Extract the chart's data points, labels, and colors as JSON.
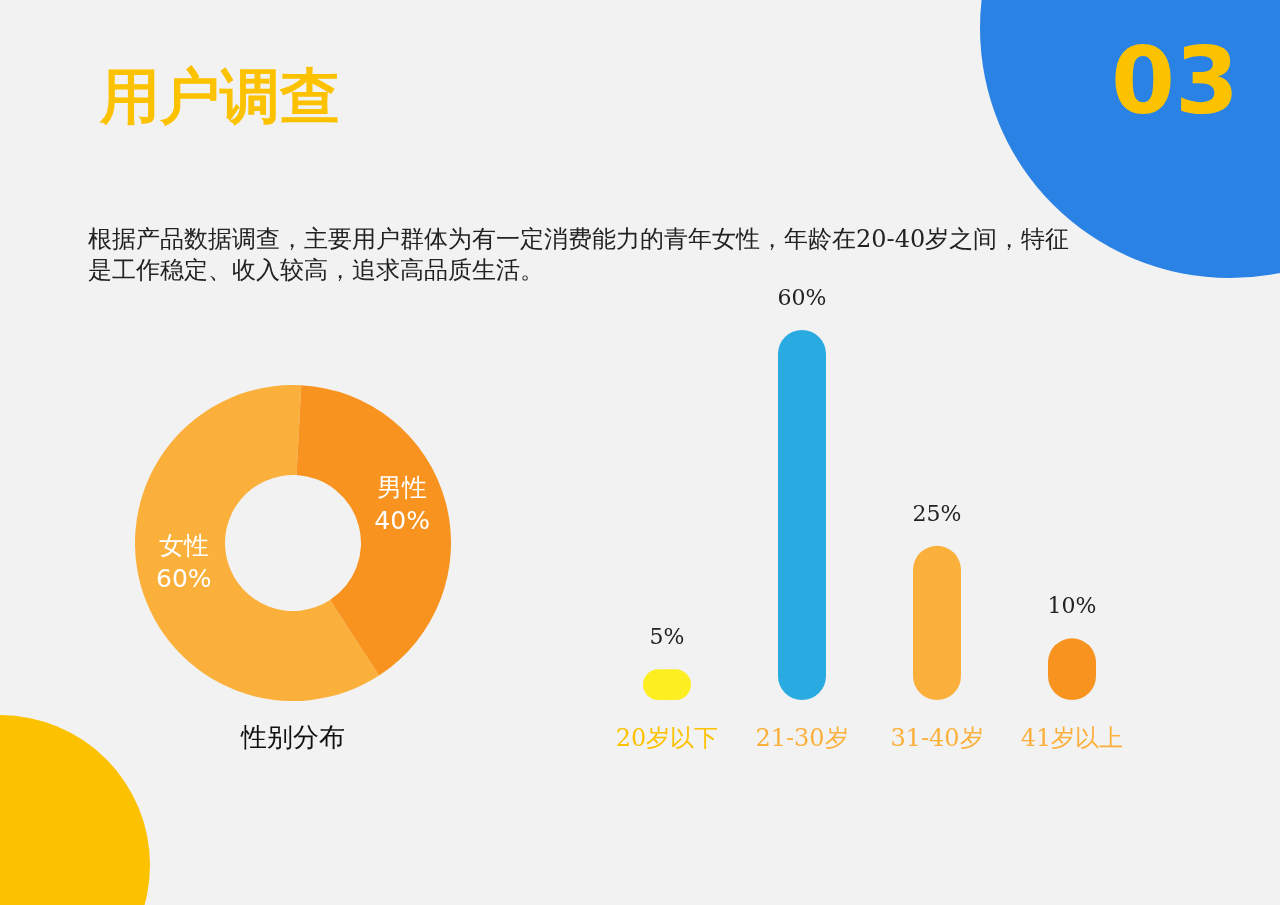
{
  "chart_data": [
    {
      "type": "other",
      "title": "用户调查",
      "subtitle": "根据产品数据调查，主要用户群体为有一定消费能力的青年女性，年龄在20-40岁之间，特征是工作稳定、收入较高，追求高品质生活。",
      "annotations": [
        "03"
      ]
    },
    {
      "type": "donut",
      "title": "性别分布",
      "categories": [
        "女性",
        "男性"
      ],
      "values": [
        60,
        40
      ],
      "colors": [
        "#fbb03b",
        "#f7931e"
      ],
      "value_labels": [
        "60%",
        "40%"
      ]
    },
    {
      "type": "bar",
      "categories": [
        "20岁以下",
        "21-30岁",
        "31-40岁",
        "41岁以上"
      ],
      "values": [
        5,
        60,
        25,
        10
      ],
      "colors": [
        "#fcee21",
        "#29abe2",
        "#fbb03b",
        "#f7931e"
      ],
      "value_labels": [
        "5%",
        "60%",
        "25%",
        "10%"
      ]
    }
  ]
}
